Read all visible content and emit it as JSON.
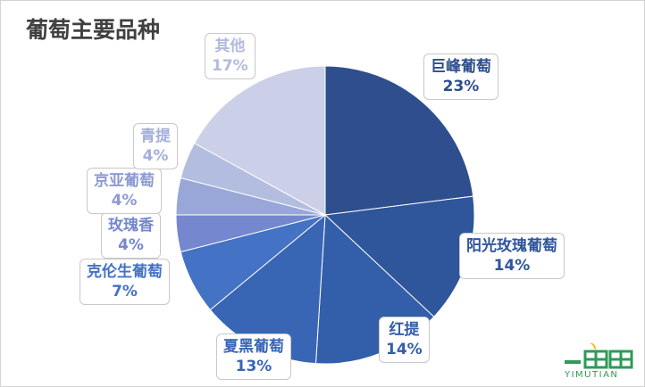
{
  "chart_data": {
    "type": "pie",
    "title": "葡萄主要品种",
    "slices": [
      {
        "label": "巨峰葡萄",
        "value": 23,
        "display": "23%",
        "color": "#2e4e8d",
        "text_color": "#2e4e8d"
      },
      {
        "label": "阳光玫瑰葡萄",
        "value": 14,
        "display": "14%",
        "color": "#2f559b",
        "text_color": "#2f559b"
      },
      {
        "label": "红提",
        "value": 14,
        "display": "14%",
        "color": "#335ea9",
        "text_color": "#335ea9"
      },
      {
        "label": "夏黑葡萄",
        "value": 13,
        "display": "13%",
        "color": "#3866b5",
        "text_color": "#3866b5"
      },
      {
        "label": "克伦生葡萄",
        "value": 7,
        "display": "7%",
        "color": "#4472c4",
        "text_color": "#4472c4"
      },
      {
        "label": "玫瑰香",
        "value": 4,
        "display": "4%",
        "color": "#7587ce",
        "text_color": "#7587ce"
      },
      {
        "label": "京亚葡萄",
        "value": 4,
        "display": "4%",
        "color": "#99a7d8",
        "text_color": "#8c9ad4"
      },
      {
        "label": "青提",
        "value": 4,
        "display": "4%",
        "color": "#b3bde0",
        "text_color": "#a3aedb"
      },
      {
        "label": "其他",
        "value": 17,
        "display": "17%",
        "color": "#cbd0e8",
        "text_color": "#b3bade"
      }
    ]
  },
  "logo": {
    "text": "YIMUTIAN",
    "color": "#2f9a57"
  }
}
